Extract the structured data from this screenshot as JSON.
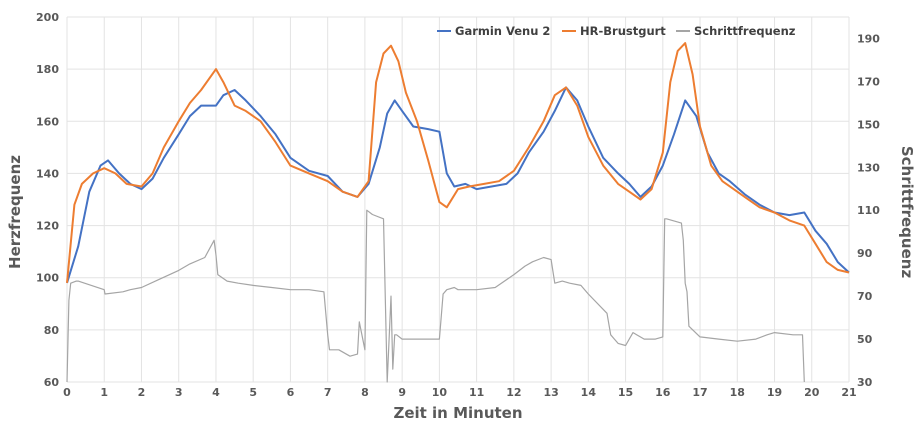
{
  "chart_data": {
    "type": "line",
    "title": "",
    "xlabel": "Zeit in Minuten",
    "ylabel_left": "Herzfrequenz",
    "ylabel_right": "Schrittfrequenz",
    "xlim": [
      0,
      21
    ],
    "ylim_left": [
      60,
      200
    ],
    "ylim_right": [
      30,
      200
    ],
    "x_ticks": [
      0,
      1,
      2,
      3,
      4,
      5,
      6,
      7,
      8,
      9,
      10,
      11,
      12,
      13,
      14,
      15,
      16,
      17,
      18,
      19,
      20,
      21
    ],
    "y_left_ticks": [
      60,
      80,
      100,
      120,
      140,
      160,
      180,
      200
    ],
    "y_right_ticks": [
      30,
      50,
      70,
      90,
      110,
      130,
      150,
      170,
      190
    ],
    "grid": true,
    "legend_position": "top-right",
    "series": [
      {
        "name": "Garmin Venu 2",
        "axis": "left",
        "color": "#4472C4",
        "x": [
          0,
          0.3,
          0.6,
          0.9,
          1.1,
          1.4,
          1.7,
          2.0,
          2.3,
          2.6,
          3.0,
          3.3,
          3.6,
          4.0,
          4.2,
          4.5,
          4.8,
          5.2,
          5.6,
          6.0,
          6.5,
          7.0,
          7.4,
          7.8,
          8.1,
          8.4,
          8.6,
          8.8,
          9.0,
          9.3,
          9.7,
          10.0,
          10.2,
          10.4,
          10.7,
          11.0,
          11.4,
          11.8,
          12.1,
          12.4,
          12.8,
          13.1,
          13.4,
          13.7,
          14.0,
          14.4,
          14.8,
          15.1,
          15.4,
          15.7,
          16.0,
          16.3,
          16.6,
          16.9,
          17.2,
          17.5,
          17.8,
          18.2,
          18.6,
          19.0,
          19.4,
          19.8,
          20.1,
          20.4,
          20.7,
          21.0
        ],
        "values": [
          98,
          112,
          133,
          143,
          145,
          140,
          136,
          134,
          138,
          146,
          155,
          162,
          166,
          166,
          170,
          172,
          168,
          162,
          155,
          146,
          141,
          139,
          133,
          131,
          136,
          150,
          163,
          168,
          164,
          158,
          157,
          156,
          140,
          135,
          136,
          134,
          135,
          136,
          140,
          148,
          156,
          164,
          173,
          168,
          158,
          146,
          140,
          136,
          131,
          135,
          143,
          155,
          168,
          162,
          148,
          140,
          137,
          132,
          128,
          125,
          124,
          125,
          118,
          113,
          106,
          102
        ]
      },
      {
        "name": "HR-Brustgurt",
        "axis": "left",
        "color": "#ED7D31",
        "x": [
          0,
          0.2,
          0.4,
          0.7,
          1.0,
          1.3,
          1.6,
          2.0,
          2.3,
          2.6,
          3.0,
          3.3,
          3.6,
          4.0,
          4.2,
          4.5,
          4.8,
          5.2,
          5.6,
          6.0,
          6.5,
          7.0,
          7.4,
          7.8,
          8.1,
          8.3,
          8.5,
          8.7,
          8.9,
          9.1,
          9.4,
          9.7,
          10.0,
          10.2,
          10.5,
          10.8,
          11.2,
          11.6,
          12.0,
          12.4,
          12.8,
          13.1,
          13.4,
          13.7,
          14.0,
          14.4,
          14.8,
          15.1,
          15.4,
          15.7,
          16.0,
          16.2,
          16.4,
          16.6,
          16.8,
          17.0,
          17.3,
          17.6,
          17.9,
          18.2,
          18.6,
          19.0,
          19.4,
          19.8,
          20.1,
          20.4,
          20.7,
          21.0
        ],
        "values": [
          98,
          128,
          136,
          140,
          142,
          140,
          136,
          135,
          140,
          150,
          160,
          167,
          172,
          180,
          175,
          166,
          164,
          160,
          152,
          143,
          140,
          137,
          133,
          131,
          137,
          175,
          186,
          189,
          183,
          171,
          160,
          145,
          129,
          127,
          134,
          135,
          136,
          137,
          141,
          150,
          160,
          170,
          173,
          166,
          154,
          143,
          136,
          133,
          130,
          134,
          148,
          175,
          187,
          190,
          178,
          158,
          143,
          137,
          134,
          131,
          127,
          125,
          122,
          120,
          113,
          106,
          103,
          102
        ]
      },
      {
        "name": "Schrittfrequenz",
        "axis": "right",
        "color": "#A5A5A5",
        "x": [
          0,
          0.05,
          0.1,
          0.25,
          0.3,
          1.0,
          1.02,
          1.5,
          1.7,
          2.0,
          2.5,
          3.0,
          3.3,
          3.7,
          3.95,
          4.0,
          4.05,
          4.3,
          4.6,
          5.0,
          5.5,
          6.0,
          6.5,
          6.9,
          7.0,
          7.05,
          7.3,
          7.6,
          7.8,
          7.85,
          8.0,
          8.05,
          8.2,
          8.5,
          8.6,
          8.7,
          8.75,
          8.8,
          8.85,
          9.0,
          9.5,
          10.0,
          10.1,
          10.2,
          10.4,
          10.5,
          10.6,
          11.0,
          11.5,
          12.0,
          12.3,
          12.5,
          12.8,
          13.0,
          13.1,
          13.3,
          13.5,
          13.8,
          14.0,
          14.5,
          14.6,
          14.7,
          14.8,
          15.0,
          15.2,
          15.5,
          15.8,
          16.0,
          16.05,
          16.1,
          16.5,
          16.55,
          16.6,
          16.65,
          16.7,
          17.0,
          17.5,
          18.0,
          18.5,
          18.8,
          19.0,
          19.5,
          19.7,
          19.75,
          19.8
        ],
        "values": [
          30,
          68,
          76,
          77,
          77,
          73,
          71,
          72,
          73,
          74,
          78,
          82,
          85,
          88,
          96,
          89,
          80,
          77,
          76,
          75,
          74,
          73,
          73,
          72,
          52,
          45,
          45,
          42,
          43,
          58,
          45,
          110,
          108,
          106,
          30,
          70,
          36,
          52,
          52,
          50,
          50,
          50,
          71,
          73,
          74,
          73,
          73,
          73,
          74,
          80,
          84,
          86,
          88,
          87,
          76,
          77,
          76,
          75,
          71,
          62,
          52,
          50,
          48,
          47,
          53,
          50,
          50,
          51,
          106,
          106,
          104,
          96,
          76,
          72,
          56,
          51,
          50,
          49,
          50,
          52,
          53,
          52,
          52,
          52,
          30
        ]
      }
    ]
  }
}
